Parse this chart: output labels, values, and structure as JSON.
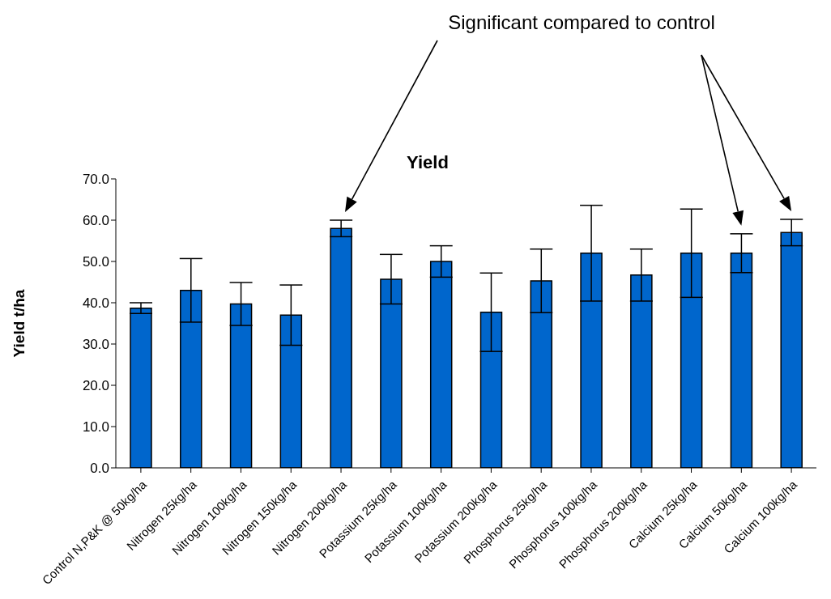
{
  "chart_data": {
    "type": "bar",
    "title": "Yield",
    "ylabel": "Yield t/ha",
    "categories": [
      "Control N,P&K @ 50kg/ha",
      "Nitrogen 25kg/ha",
      "Nitrogen 100kg/ha",
      "Nitrogen 150kg/ha",
      "Nitrogen 200kg/ha",
      "Potassium 25kg/ha",
      "Potassium 100kg/ha",
      "Potassium 200kg/ha",
      "Phosphorus 25kg/ha",
      "Phosphorus 100kg/ha",
      "Phosphorus 200kg/ha",
      "Calcium 25kg/ha",
      "Calcium 50kg/ha",
      "Calcium 100kg/ha"
    ],
    "values": [
      38.7,
      43.0,
      39.7,
      37.0,
      58.0,
      45.7,
      50.0,
      37.7,
      45.3,
      52.0,
      46.7,
      52.0,
      52.0,
      57.0
    ],
    "errors": [
      1.3,
      7.7,
      5.2,
      7.3,
      2.0,
      6.0,
      3.8,
      9.5,
      7.7,
      11.6,
      6.3,
      10.7,
      4.7,
      3.2
    ],
    "color": "#0066cc",
    "ylim": [
      0,
      70
    ],
    "yticks": [
      {
        "value": 0,
        "label": "0.0"
      },
      {
        "value": 10,
        "label": "10.0"
      },
      {
        "value": 20,
        "label": "20.0"
      },
      {
        "value": 30,
        "label": "30.0"
      },
      {
        "value": 40,
        "label": "40.0"
      },
      {
        "value": 50,
        "label": "50.0"
      },
      {
        "value": 60,
        "label": "60.0"
      },
      {
        "value": 70,
        "label": "70.0"
      }
    ],
    "grid": false,
    "legend": false,
    "annotations": [
      "Significant compared to control"
    ]
  }
}
